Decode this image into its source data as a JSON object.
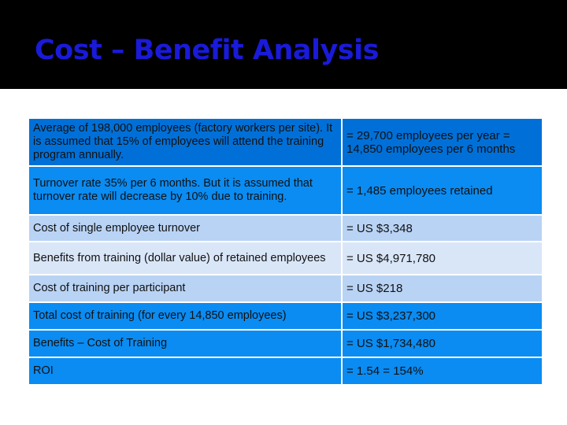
{
  "slide": {
    "title": "Cost – Benefit Analysis"
  },
  "table": {
    "rows": [
      {
        "label": "Average of 198,000 employees (factory workers per site). It is assumed that 15% of employees will attend the training program annually.",
        "value": "= 29,700 employees per year = 14,850 employees per 6 months"
      },
      {
        "label": "Turnover rate 35% per 6 months. But it is assumed that turnover rate will decrease by 10% due to training.",
        "value": "= 1,485 employees retained"
      },
      {
        "label": "Cost of single employee turnover",
        "value": "= US $3,348"
      },
      {
        "label": "Benefits from training (dollar value) of retained employees",
        "value": "= US $4,971,780"
      },
      {
        "label": "Cost of training per participant",
        "value": "= US $218"
      },
      {
        "label": "Total cost of training (for every 14,850 employees)",
        "value": "= US $3,237,300"
      },
      {
        "label": "Benefits – Cost of Training",
        "value": "= US $1,734,480"
      },
      {
        "label": "ROI",
        "value": "= 1.54 = 154%"
      }
    ]
  },
  "colors": {
    "title_bar": "#000000",
    "title_text": "#1a1ad9",
    "header_row": "#0070d8",
    "bright_row": "#0a8cf2",
    "light_row": "#b9d3f5",
    "lighter_row": "#d9e6f8"
  }
}
